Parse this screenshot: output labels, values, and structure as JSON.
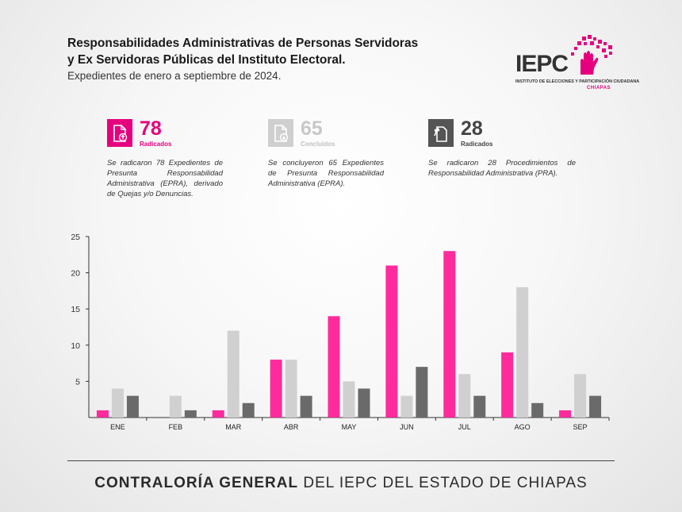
{
  "header": {
    "title": "Responsabilidades Administrativas de Personas Servidoras\ny Ex Servidoras Públicas del Instituto Electoral.",
    "subtitle": "Expedientes de enero a septiembre de 2024."
  },
  "logo": {
    "name": "IEPC",
    "caption": "INSTITUTO DE ELECCIONES Y PARTICIPACIÓN CIUDADANA",
    "region": "CHIAPAS",
    "icon": "hand-tree-icon"
  },
  "kpis": [
    {
      "value": "78",
      "label": "Radicados",
      "color": "#e6007e",
      "icon": "document-upload-icon",
      "desc": "Se radicaron 78 Expedientes de Presunta Responsabilidad Administrativa (EPRA), derivado de Quejas y/o Denuncias."
    },
    {
      "value": "65",
      "label": "Concluidos",
      "color": "#c8c8c8",
      "icon": "document-download-icon",
      "desc": "Se concluyeron 65 Expedientes de Presunta Responsabilidad Administrativa (EPRA)."
    },
    {
      "value": "28",
      "label": "Radicados",
      "color": "#555555",
      "icon": "gavel-document-icon",
      "desc": "Se radicaron 28 Procedimientos de Responsabilidad Administrativa (PRA)."
    }
  ],
  "chart_data": {
    "type": "bar",
    "categories": [
      "ENE",
      "FEB",
      "MAR",
      "ABR",
      "MAY",
      "JUN",
      "JUL",
      "AGO",
      "SEP"
    ],
    "series": [
      {
        "values": [
          1,
          0,
          1,
          8,
          14,
          21,
          23,
          9,
          1
        ],
        "color": "#ff2b9c"
      },
      {
        "values": [
          4,
          3,
          12,
          8,
          5,
          3,
          6,
          18,
          6
        ],
        "color": "#d0d0d0"
      },
      {
        "values": [
          3,
          1,
          2,
          3,
          4,
          7,
          3,
          2,
          3
        ],
        "color": "#6a6a6a"
      }
    ],
    "yticks": [
      5,
      10,
      15,
      20,
      25
    ],
    "ylim": [
      0,
      25
    ],
    "grid": false
  },
  "footer": {
    "bold": "CONTRALORÍA GENERAL",
    "rest": " DEL IEPC DEL ESTADO DE CHIAPAS"
  }
}
